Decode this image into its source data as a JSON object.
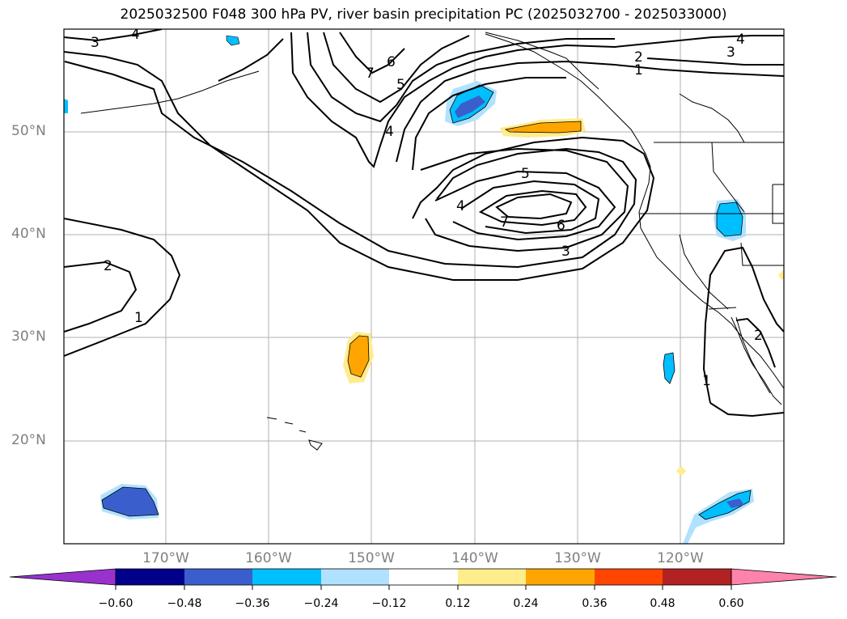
{
  "title": "2025032500 F048 300 hPa PV, river basin precipitation PC (2025032700 - 2025033000)",
  "lat_labels": [
    "50°N",
    "40°N",
    "30°N",
    "20°N"
  ],
  "lon_labels": [
    "170°W",
    "160°W",
    "150°W",
    "140°W",
    "130°W",
    "120°W"
  ],
  "contour_labels": [
    "3",
    "4",
    "6",
    "7",
    "5",
    "4",
    "2",
    "1",
    "4",
    "3",
    "5",
    "4",
    "7",
    "6",
    "3",
    "2",
    "1",
    "1",
    "2"
  ],
  "colorbar": {
    "ticks": [
      "−0.60",
      "−0.48",
      "−0.36",
      "−0.24",
      "−0.12",
      "0.12",
      "0.24",
      "0.36",
      "0.48",
      "0.60"
    ],
    "colors": [
      "#9932cc",
      "#00008b",
      "#3a5fcd",
      "#00bfff",
      "#b0e2ff",
      "#ffffff",
      "#ffec8b",
      "#ffa500",
      "#ff4500",
      "#b22222",
      "#ff82ab"
    ]
  }
}
